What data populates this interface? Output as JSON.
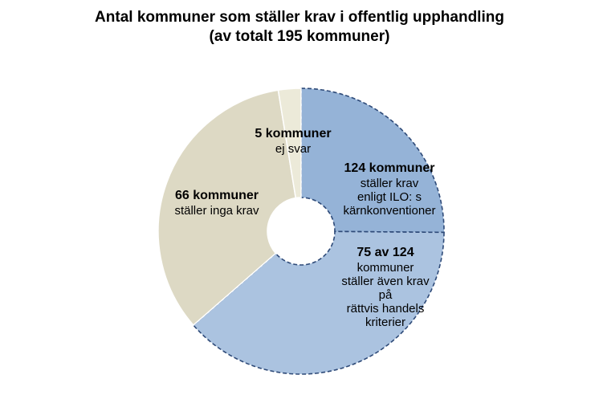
{
  "title": "Antal kommuner som ställer krav i offentlig upphandling",
  "subtitle": "(av totalt 195 kommuner)",
  "chart_data": {
    "type": "pie",
    "title": "Antal kommuner som ställer krav i offentlig upphandling",
    "subtitle": "(av totalt 195 kommuner)",
    "slices": [
      {
        "count": 49,
        "color": "#95b3d7",
        "dashed": true,
        "label_main": "124 kommuner",
        "label_sub": [
          "ställer krav",
          "enligt ILO: s",
          "kärnkonventioner"
        ]
      },
      {
        "count": 75,
        "color": "#abc3e0",
        "dashed": true,
        "label_main": "75 av 124",
        "label_sub": [
          "kommuner",
          "ställer även krav",
          "på",
          "rättvis handels",
          "kriterier"
        ]
      },
      {
        "count": 66,
        "color": "#ddd9c4",
        "dashed": false,
        "label_main": "66 kommuner",
        "label_sub": [
          "ställer inga krav"
        ]
      },
      {
        "count": 5,
        "color": "#ecead9",
        "dashed": false,
        "label_main": "5 kommuner",
        "label_sub": [
          "ej svar"
        ]
      }
    ],
    "total": 195,
    "start_angle_deg": 0,
    "direction": "clockwise",
    "donut": true
  }
}
